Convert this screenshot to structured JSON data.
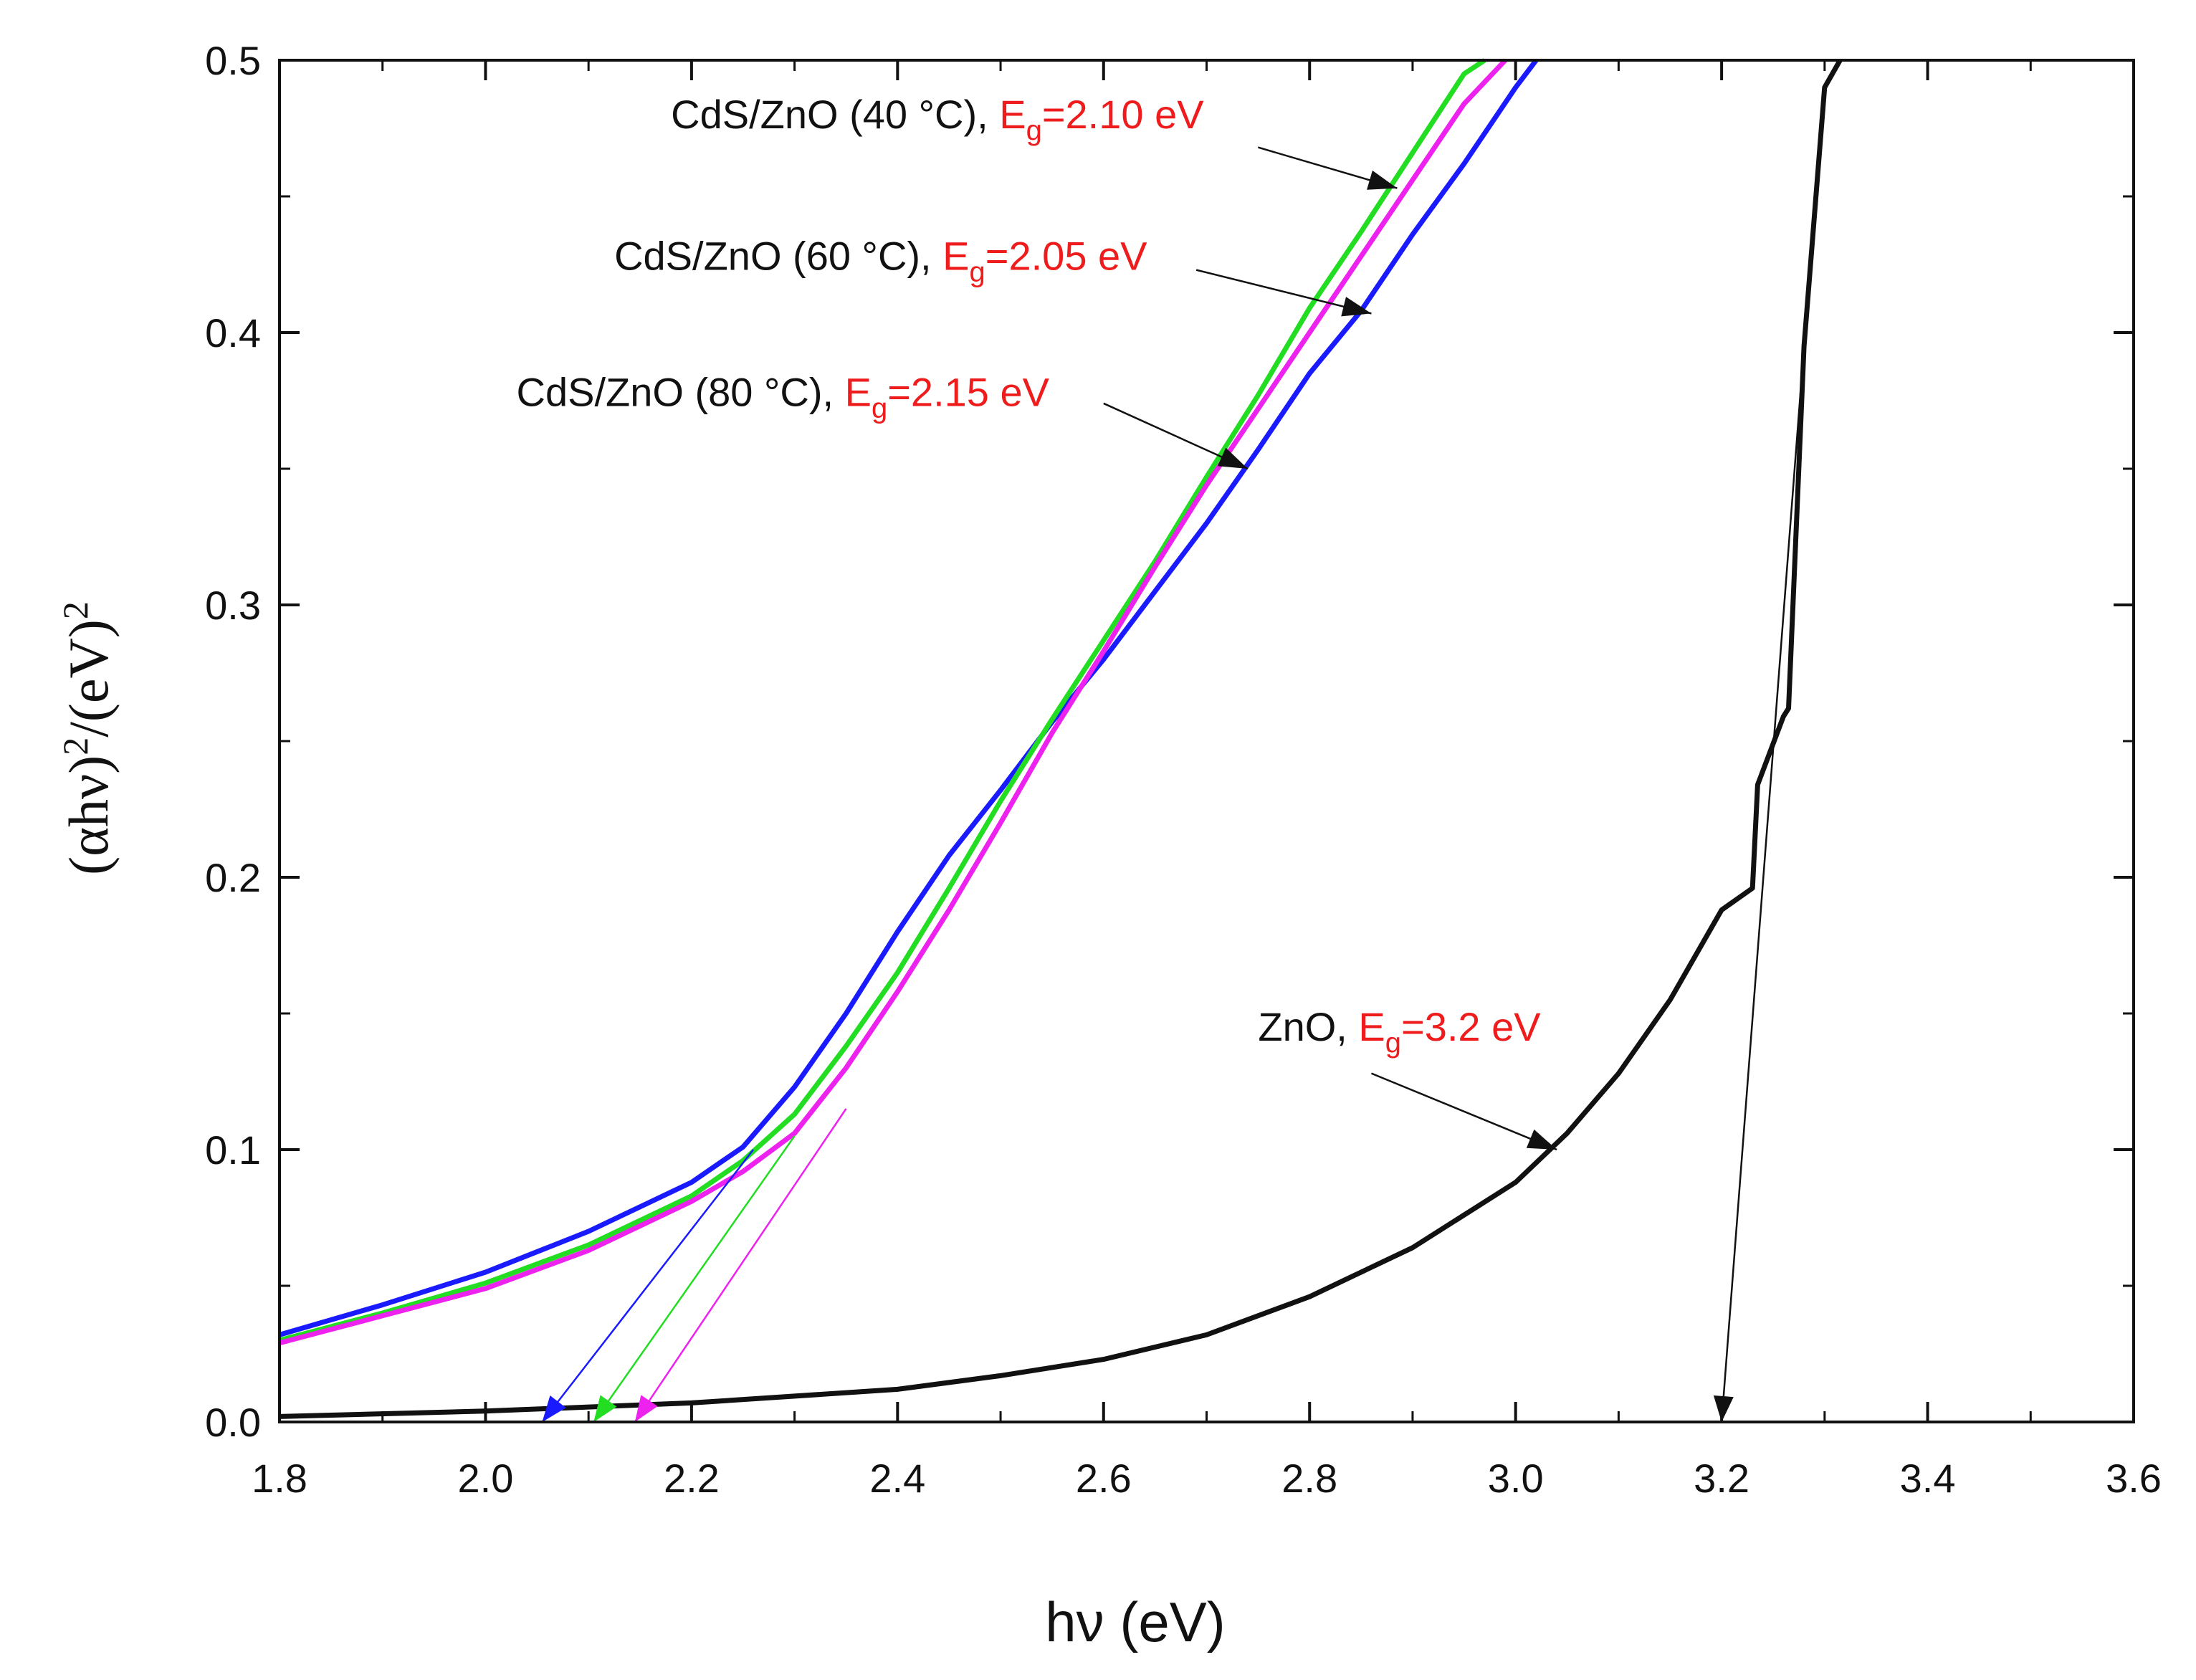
{
  "chart_data": {
    "type": "line",
    "xlabel": "hν (eV)",
    "ylabel_parts": {
      "open": "(αhν)",
      "exp1": "2",
      "mid": "/(eV)",
      "exp2": "2"
    },
    "xlim": [
      1.8,
      3.6
    ],
    "ylim": [
      0.0,
      0.5
    ],
    "xticks": [
      1.8,
      2.0,
      2.2,
      2.4,
      2.6,
      2.8,
      3.0,
      3.2,
      3.4,
      3.6
    ],
    "yticks": [
      0.0,
      0.1,
      0.2,
      0.3,
      0.4,
      0.5
    ],
    "xtick_labels": [
      "1.8",
      "2.0",
      "2.2",
      "2.4",
      "2.6",
      "2.8",
      "3.0",
      "3.2",
      "3.4",
      "3.6"
    ],
    "ytick_labels": [
      "0.0",
      "0.1",
      "0.2",
      "0.3",
      "0.4",
      "0.5"
    ],
    "series": [
      {
        "name": "CdS/ZnO (60 °C)",
        "color": "#1a1aff",
        "x": [
          1.8,
          1.9,
          2.0,
          2.1,
          2.2,
          2.25,
          2.3,
          2.35,
          2.4,
          2.45,
          2.5,
          2.55,
          2.6,
          2.65,
          2.7,
          2.75,
          2.8,
          2.85,
          2.9,
          2.95,
          3.0,
          3.02
        ],
        "y": [
          0.032,
          0.043,
          0.055,
          0.07,
          0.088,
          0.101,
          0.123,
          0.15,
          0.18,
          0.208,
          0.232,
          0.257,
          0.28,
          0.305,
          0.33,
          0.357,
          0.385,
          0.408,
          0.436,
          0.462,
          0.49,
          0.5
        ]
      },
      {
        "name": "CdS/ZnO (40 °C)",
        "color": "#22dd22",
        "x": [
          1.8,
          1.9,
          2.0,
          2.1,
          2.2,
          2.25,
          2.3,
          2.35,
          2.4,
          2.45,
          2.5,
          2.55,
          2.6,
          2.65,
          2.7,
          2.75,
          2.8,
          2.85,
          2.9,
          2.95,
          2.97
        ],
        "y": [
          0.03,
          0.04,
          0.051,
          0.065,
          0.083,
          0.096,
          0.113,
          0.138,
          0.165,
          0.196,
          0.228,
          0.258,
          0.287,
          0.316,
          0.347,
          0.377,
          0.409,
          0.437,
          0.466,
          0.495,
          0.5
        ]
      },
      {
        "name": "CdS/ZnO (80 °C)",
        "color": "#ee22ee",
        "x": [
          1.8,
          1.9,
          2.0,
          2.1,
          2.2,
          2.25,
          2.3,
          2.35,
          2.4,
          2.45,
          2.5,
          2.55,
          2.6,
          2.65,
          2.7,
          2.75,
          2.8,
          2.85,
          2.9,
          2.95,
          2.99
        ],
        "y": [
          0.029,
          0.039,
          0.049,
          0.063,
          0.081,
          0.092,
          0.106,
          0.13,
          0.158,
          0.188,
          0.22,
          0.253,
          0.283,
          0.314,
          0.344,
          0.372,
          0.4,
          0.428,
          0.456,
          0.484,
          0.5
        ]
      },
      {
        "name": "ZnO",
        "color": "#111111",
        "x": [
          1.8,
          2.0,
          2.2,
          2.4,
          2.5,
          2.6,
          2.7,
          2.8,
          2.9,
          3.0,
          3.05,
          3.1,
          3.15,
          3.2,
          3.23,
          3.235,
          3.26,
          3.265,
          3.28,
          3.3,
          3.315
        ],
        "y": [
          0.002,
          0.004,
          0.007,
          0.012,
          0.017,
          0.023,
          0.032,
          0.046,
          0.064,
          0.088,
          0.106,
          0.128,
          0.155,
          0.188,
          0.196,
          0.234,
          0.259,
          0.262,
          0.395,
          0.49,
          0.5
        ]
      }
    ],
    "tangent_lines": [
      {
        "color": "#1a1aff",
        "x": [
          2.26,
          2.055
        ],
        "y": [
          0.1,
          0.0
        ]
      },
      {
        "color": "#22dd22",
        "x": [
          2.3,
          2.105
        ],
        "y": [
          0.105,
          0.0
        ]
      },
      {
        "color": "#ee22ee",
        "x": [
          2.35,
          2.145
        ],
        "y": [
          0.115,
          0.0
        ]
      },
      {
        "color": "#111111",
        "x": [
          3.28,
          3.2
        ],
        "y": [
          0.395,
          0.0
        ]
      }
    ],
    "annotations": [
      {
        "sample": "CdS/ZnO  (40 °C), ",
        "eg_label": "E",
        "eg_sub": "g",
        "eg_value": "=2.10 eV",
        "text_pos": [
          2.18,
          0.475
        ],
        "arrow_from": [
          2.75,
          0.468
        ],
        "arrow_to": [
          2.885,
          0.453
        ]
      },
      {
        "sample": "CdS/ZnO  (60 °C), ",
        "eg_label": "E",
        "eg_sub": "g",
        "eg_value": "=2.05 eV",
        "text_pos": [
          2.125,
          0.423
        ],
        "arrow_from": [
          2.69,
          0.423
        ],
        "arrow_to": [
          2.86,
          0.407
        ]
      },
      {
        "sample": "CdS/ZnO  (80 °C), ",
        "eg_label": "E",
        "eg_sub": "g",
        "eg_value": "=2.15 eV",
        "text_pos": [
          2.03,
          0.373
        ],
        "arrow_from": [
          2.6,
          0.374
        ],
        "arrow_to": [
          2.74,
          0.35
        ]
      },
      {
        "sample": "ZnO, ",
        "eg_label": "E",
        "eg_sub": "g",
        "eg_value": "=3.2 eV",
        "text_pos": [
          2.75,
          0.14
        ],
        "arrow_from": [
          2.86,
          0.128
        ],
        "arrow_to": [
          3.04,
          0.1
        ]
      }
    ]
  }
}
